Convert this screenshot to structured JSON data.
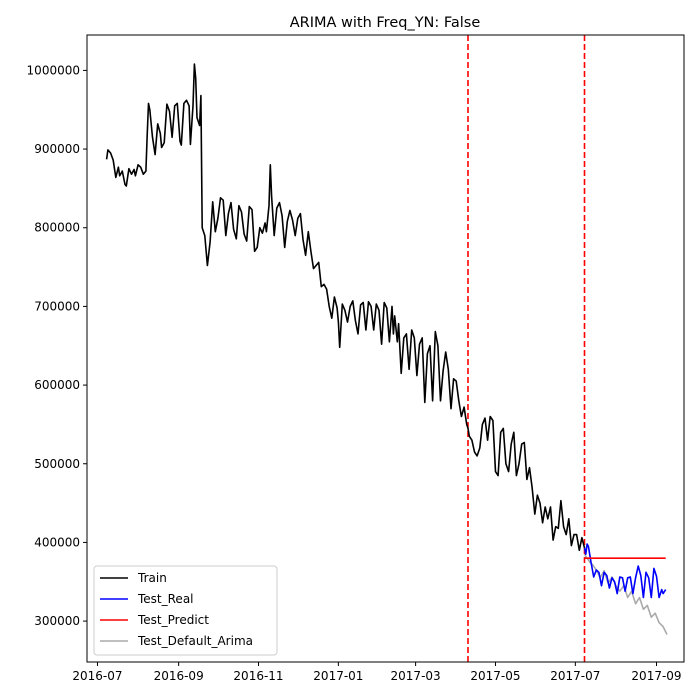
{
  "chart_data": {
    "type": "line",
    "title": "ARIMA with Freq_YN: False",
    "xlabel": "",
    "ylabel": "",
    "x_ticks": [
      "2016-07",
      "2016-09",
      "2016-11",
      "2017-01",
      "2017-03",
      "2017-05",
      "2017-07",
      "2017-09"
    ],
    "y_ticks": [
      300000,
      400000,
      500000,
      600000,
      700000,
      800000,
      900000,
      1000000
    ],
    "xlim": [
      "2016-06-23",
      "2017-09-22"
    ],
    "ylim": [
      248000,
      1045000
    ],
    "grid": false,
    "legend_position": "lower-left",
    "vlines": [
      {
        "x": "2017-04-10",
        "color": "#ff0000",
        "style": "dashed"
      },
      {
        "x": "2017-07-08",
        "color": "#ff0000",
        "style": "dashed"
      }
    ],
    "series": [
      {
        "name": "Train",
        "color": "#000000",
        "points": [
          [
            "2016-07-08",
            887000
          ],
          [
            "2016-07-09",
            899000
          ],
          [
            "2016-07-11",
            895000
          ],
          [
            "2016-07-13",
            886000
          ],
          [
            "2016-07-15",
            864000
          ],
          [
            "2016-07-17",
            877000
          ],
          [
            "2016-07-18",
            866000
          ],
          [
            "2016-07-20",
            872000
          ],
          [
            "2016-07-22",
            855000
          ],
          [
            "2016-07-23",
            853000
          ],
          [
            "2016-07-25",
            875000
          ],
          [
            "2016-07-27",
            868000
          ],
          [
            "2016-07-29",
            874000
          ],
          [
            "2016-07-30",
            866000
          ],
          [
            "2016-08-01",
            880000
          ],
          [
            "2016-08-03",
            877000
          ],
          [
            "2016-08-05",
            868000
          ],
          [
            "2016-08-07",
            872000
          ],
          [
            "2016-08-08",
            918000
          ],
          [
            "2016-08-09",
            958000
          ],
          [
            "2016-08-10",
            950000
          ],
          [
            "2016-08-12",
            915000
          ],
          [
            "2016-08-14",
            893000
          ],
          [
            "2016-08-16",
            932000
          ],
          [
            "2016-08-18",
            920000
          ],
          [
            "2016-08-19",
            902000
          ],
          [
            "2016-08-21",
            908000
          ],
          [
            "2016-08-23",
            957000
          ],
          [
            "2016-08-25",
            948000
          ],
          [
            "2016-08-27",
            915000
          ],
          [
            "2016-08-29",
            955000
          ],
          [
            "2016-08-31",
            958000
          ],
          [
            "2016-09-02",
            910000
          ],
          [
            "2016-09-03",
            905000
          ],
          [
            "2016-09-05",
            958000
          ],
          [
            "2016-09-07",
            962000
          ],
          [
            "2016-09-09",
            955000
          ],
          [
            "2016-09-10",
            906000
          ],
          [
            "2016-09-12",
            955000
          ],
          [
            "2016-09-13",
            1008000
          ],
          [
            "2016-09-14",
            990000
          ],
          [
            "2016-09-15",
            940000
          ],
          [
            "2016-09-17",
            930000
          ],
          [
            "2016-09-18",
            968000
          ],
          [
            "2016-09-19",
            800000
          ],
          [
            "2016-09-21",
            790000
          ],
          [
            "2016-09-23",
            752000
          ],
          [
            "2016-09-25",
            782000
          ],
          [
            "2016-09-27",
            833000
          ],
          [
            "2016-09-29",
            795000
          ],
          [
            "2016-10-01",
            812000
          ],
          [
            "2016-10-03",
            838000
          ],
          [
            "2016-10-05",
            835000
          ],
          [
            "2016-10-07",
            790000
          ],
          [
            "2016-10-09",
            818000
          ],
          [
            "2016-10-11",
            832000
          ],
          [
            "2016-10-13",
            798000
          ],
          [
            "2016-10-15",
            786000
          ],
          [
            "2016-10-17",
            828000
          ],
          [
            "2016-10-19",
            820000
          ],
          [
            "2016-10-21",
            792000
          ],
          [
            "2016-10-23",
            783000
          ],
          [
            "2016-10-25",
            827000
          ],
          [
            "2016-10-27",
            823000
          ],
          [
            "2016-10-29",
            770000
          ],
          [
            "2016-10-31",
            775000
          ],
          [
            "2016-11-02",
            800000
          ],
          [
            "2016-11-04",
            793000
          ],
          [
            "2016-11-06",
            806000
          ],
          [
            "2016-11-07",
            795000
          ],
          [
            "2016-11-09",
            828000
          ],
          [
            "2016-11-10",
            880000
          ],
          [
            "2016-11-11",
            840000
          ],
          [
            "2016-11-13",
            790000
          ],
          [
            "2016-11-15",
            825000
          ],
          [
            "2016-11-17",
            832000
          ],
          [
            "2016-11-19",
            815000
          ],
          [
            "2016-11-21",
            775000
          ],
          [
            "2016-11-23",
            808000
          ],
          [
            "2016-11-25",
            822000
          ],
          [
            "2016-11-27",
            810000
          ],
          [
            "2016-11-29",
            790000
          ],
          [
            "2016-12-01",
            812000
          ],
          [
            "2016-12-03",
            818000
          ],
          [
            "2016-12-05",
            785000
          ],
          [
            "2016-12-07",
            765000
          ],
          [
            "2016-12-09",
            795000
          ],
          [
            "2016-12-11",
            770000
          ],
          [
            "2016-12-13",
            748000
          ],
          [
            "2016-12-15",
            752000
          ],
          [
            "2016-12-17",
            756000
          ],
          [
            "2016-12-19",
            725000
          ],
          [
            "2016-12-21",
            728000
          ],
          [
            "2016-12-23",
            722000
          ],
          [
            "2016-12-25",
            700000
          ],
          [
            "2016-12-27",
            685000
          ],
          [
            "2016-12-29",
            712000
          ],
          [
            "2016-12-31",
            698000
          ],
          [
            "2017-01-01",
            680000
          ],
          [
            "2017-01-02",
            648000
          ],
          [
            "2017-01-04",
            703000
          ],
          [
            "2017-01-06",
            695000
          ],
          [
            "2017-01-08",
            680000
          ],
          [
            "2017-01-10",
            700000
          ],
          [
            "2017-01-12",
            707000
          ],
          [
            "2017-01-14",
            682000
          ],
          [
            "2017-01-16",
            665000
          ],
          [
            "2017-01-18",
            702000
          ],
          [
            "2017-01-20",
            705000
          ],
          [
            "2017-01-22",
            670000
          ],
          [
            "2017-01-24",
            706000
          ],
          [
            "2017-01-26",
            700000
          ],
          [
            "2017-01-28",
            670000
          ],
          [
            "2017-01-30",
            703000
          ],
          [
            "2017-02-01",
            695000
          ],
          [
            "2017-02-03",
            652000
          ],
          [
            "2017-02-05",
            705000
          ],
          [
            "2017-02-07",
            698000
          ],
          [
            "2017-02-09",
            655000
          ],
          [
            "2017-02-11",
            700000
          ],
          [
            "2017-02-12",
            665000
          ],
          [
            "2017-02-13",
            688000
          ],
          [
            "2017-02-15",
            655000
          ],
          [
            "2017-02-16",
            678000
          ],
          [
            "2017-02-18",
            615000
          ],
          [
            "2017-02-20",
            660000
          ],
          [
            "2017-02-22",
            665000
          ],
          [
            "2017-02-24",
            620000
          ],
          [
            "2017-02-26",
            670000
          ],
          [
            "2017-02-28",
            660000
          ],
          [
            "2017-03-02",
            612000
          ],
          [
            "2017-03-04",
            652000
          ],
          [
            "2017-03-06",
            660000
          ],
          [
            "2017-03-08",
            578000
          ],
          [
            "2017-03-10",
            640000
          ],
          [
            "2017-03-12",
            650000
          ],
          [
            "2017-03-14",
            580000
          ],
          [
            "2017-03-16",
            668000
          ],
          [
            "2017-03-18",
            650000
          ],
          [
            "2017-03-20",
            580000
          ],
          [
            "2017-03-22",
            618000
          ],
          [
            "2017-03-24",
            642000
          ],
          [
            "2017-03-26",
            620000
          ],
          [
            "2017-03-28",
            570000
          ],
          [
            "2017-03-30",
            608000
          ],
          [
            "2017-04-01",
            605000
          ],
          [
            "2017-04-03",
            580000
          ],
          [
            "2017-04-05",
            560000
          ],
          [
            "2017-04-07",
            572000
          ],
          [
            "2017-04-09",
            550000
          ],
          [
            "2017-04-10",
            545000
          ],
          [
            "2017-04-11",
            535000
          ],
          [
            "2017-04-13",
            530000
          ],
          [
            "2017-04-15",
            515000
          ],
          [
            "2017-04-17",
            510000
          ],
          [
            "2017-04-19",
            520000
          ],
          [
            "2017-04-21",
            550000
          ],
          [
            "2017-04-23",
            558000
          ],
          [
            "2017-04-25",
            530000
          ],
          [
            "2017-04-27",
            560000
          ],
          [
            "2017-04-29",
            555000
          ],
          [
            "2017-05-01",
            490000
          ],
          [
            "2017-05-03",
            485000
          ],
          [
            "2017-05-05",
            540000
          ],
          [
            "2017-05-07",
            545000
          ],
          [
            "2017-05-09",
            500000
          ],
          [
            "2017-05-11",
            490000
          ],
          [
            "2017-05-13",
            525000
          ],
          [
            "2017-05-15",
            540000
          ],
          [
            "2017-05-17",
            485000
          ],
          [
            "2017-05-19",
            500000
          ],
          [
            "2017-05-21",
            525000
          ],
          [
            "2017-05-23",
            527000
          ],
          [
            "2017-05-25",
            480000
          ],
          [
            "2017-05-27",
            495000
          ],
          [
            "2017-05-29",
            470000
          ],
          [
            "2017-05-31",
            436000
          ],
          [
            "2017-06-02",
            460000
          ],
          [
            "2017-06-04",
            450000
          ],
          [
            "2017-06-06",
            425000
          ],
          [
            "2017-06-08",
            445000
          ],
          [
            "2017-06-10",
            430000
          ],
          [
            "2017-06-12",
            445000
          ],
          [
            "2017-06-14",
            403000
          ],
          [
            "2017-06-16",
            420000
          ],
          [
            "2017-06-18",
            418000
          ],
          [
            "2017-06-20",
            453000
          ],
          [
            "2017-06-22",
            420000
          ],
          [
            "2017-06-24",
            410000
          ],
          [
            "2017-06-26",
            430000
          ],
          [
            "2017-06-28",
            396000
          ],
          [
            "2017-06-30",
            410000
          ],
          [
            "2017-07-02",
            410000
          ],
          [
            "2017-07-04",
            390000
          ],
          [
            "2017-07-06",
            406000
          ],
          [
            "2017-07-08",
            393000
          ]
        ]
      },
      {
        "name": "Test_Real",
        "color": "#0000ff",
        "points": [
          [
            "2017-07-08",
            393000
          ],
          [
            "2017-07-09",
            385000
          ],
          [
            "2017-07-10",
            398000
          ],
          [
            "2017-07-11",
            395000
          ],
          [
            "2017-07-13",
            375000
          ],
          [
            "2017-07-15",
            356000
          ],
          [
            "2017-07-17",
            365000
          ],
          [
            "2017-07-19",
            362000
          ],
          [
            "2017-07-21",
            345000
          ],
          [
            "2017-07-23",
            362000
          ],
          [
            "2017-07-25",
            358000
          ],
          [
            "2017-07-27",
            342000
          ],
          [
            "2017-07-29",
            355000
          ],
          [
            "2017-07-31",
            350000
          ],
          [
            "2017-08-02",
            335000
          ],
          [
            "2017-08-04",
            356000
          ],
          [
            "2017-08-06",
            355000
          ],
          [
            "2017-08-08",
            338000
          ],
          [
            "2017-08-10",
            355000
          ],
          [
            "2017-08-12",
            356000
          ],
          [
            "2017-08-14",
            335000
          ],
          [
            "2017-08-16",
            355000
          ],
          [
            "2017-08-18",
            370000
          ],
          [
            "2017-08-20",
            358000
          ],
          [
            "2017-08-22",
            330000
          ],
          [
            "2017-08-24",
            362000
          ],
          [
            "2017-08-26",
            355000
          ],
          [
            "2017-08-28",
            330000
          ],
          [
            "2017-08-30",
            367000
          ],
          [
            "2017-09-01",
            357000
          ],
          [
            "2017-09-03",
            330000
          ],
          [
            "2017-09-05",
            340000
          ],
          [
            "2017-09-06",
            335000
          ],
          [
            "2017-09-08",
            340000
          ]
        ]
      },
      {
        "name": "Test_Predict",
        "color": "#ff0000",
        "points": [
          [
            "2017-07-08",
            380000
          ],
          [
            "2017-09-08",
            380000
          ]
        ]
      },
      {
        "name": "Test_Default_Arima",
        "color": "#aaaaaa",
        "points": [
          [
            "2017-07-08",
            385000
          ],
          [
            "2017-07-12",
            375000
          ],
          [
            "2017-07-14",
            372000
          ],
          [
            "2017-07-17",
            365000
          ],
          [
            "2017-07-20",
            355000
          ],
          [
            "2017-07-23",
            364000
          ],
          [
            "2017-07-26",
            348000
          ],
          [
            "2017-07-29",
            356000
          ],
          [
            "2017-08-01",
            345000
          ],
          [
            "2017-08-04",
            338000
          ],
          [
            "2017-08-07",
            345000
          ],
          [
            "2017-08-10",
            330000
          ],
          [
            "2017-08-13",
            338000
          ],
          [
            "2017-08-16",
            322000
          ],
          [
            "2017-08-19",
            330000
          ],
          [
            "2017-08-22",
            315000
          ],
          [
            "2017-08-25",
            320000
          ],
          [
            "2017-08-28",
            305000
          ],
          [
            "2017-08-31",
            310000
          ],
          [
            "2017-09-03",
            298000
          ],
          [
            "2017-09-06",
            293000
          ],
          [
            "2017-09-09",
            283000
          ]
        ]
      }
    ]
  }
}
